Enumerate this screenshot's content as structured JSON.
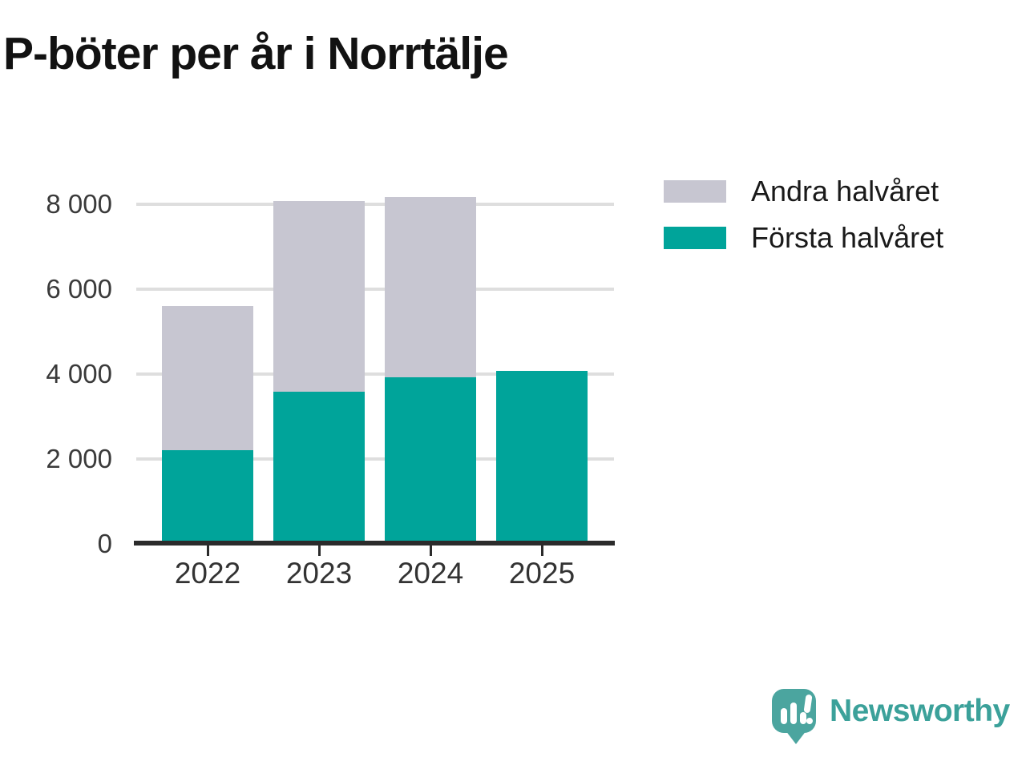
{
  "title": "P-böter per år i Norrtälje",
  "chart_data": {
    "type": "bar",
    "stacked": true,
    "title": "P-böter per år i Norrtälje",
    "categories": [
      "2022",
      "2023",
      "2024",
      "2025"
    ],
    "series": [
      {
        "name": "Första halvåret",
        "color": "#00A49A",
        "values": [
          2200,
          3590,
          3920,
          4070
        ]
      },
      {
        "name": "Andra halvåret",
        "color": "#C7C6D1",
        "values": [
          3400,
          4480,
          4250,
          0
        ]
      }
    ],
    "totals": [
      5600,
      8070,
      8170,
      4070
    ],
    "ylim": [
      0,
      8000
    ],
    "yticks": [
      {
        "value": 0,
        "label": "0"
      },
      {
        "value": 2000,
        "label": "2 000"
      },
      {
        "value": 4000,
        "label": "4 000"
      },
      {
        "value": 6000,
        "label": "6 000"
      },
      {
        "value": 8000,
        "label": "8 000"
      }
    ],
    "xlabel": "",
    "ylabel": "",
    "grid": "horizontal",
    "legend_position": "top-right"
  },
  "legend": {
    "items": [
      {
        "label": "Andra halvåret",
        "color": "#C7C6D1"
      },
      {
        "label": "Första halvåret",
        "color": "#00A49A"
      }
    ]
  },
  "branding": {
    "wordmark": "Newsworthy",
    "logo_icon": "speech-bubble-bar-chart-icon",
    "color": "#3BA19A"
  },
  "colors": {
    "first_half": "#00A49A",
    "second_half": "#C7C6D1",
    "gridline": "#DEDEDE",
    "axis": "#2B2B2B",
    "title_text": "#121212",
    "axis_label_text": "#3A3A3A"
  }
}
